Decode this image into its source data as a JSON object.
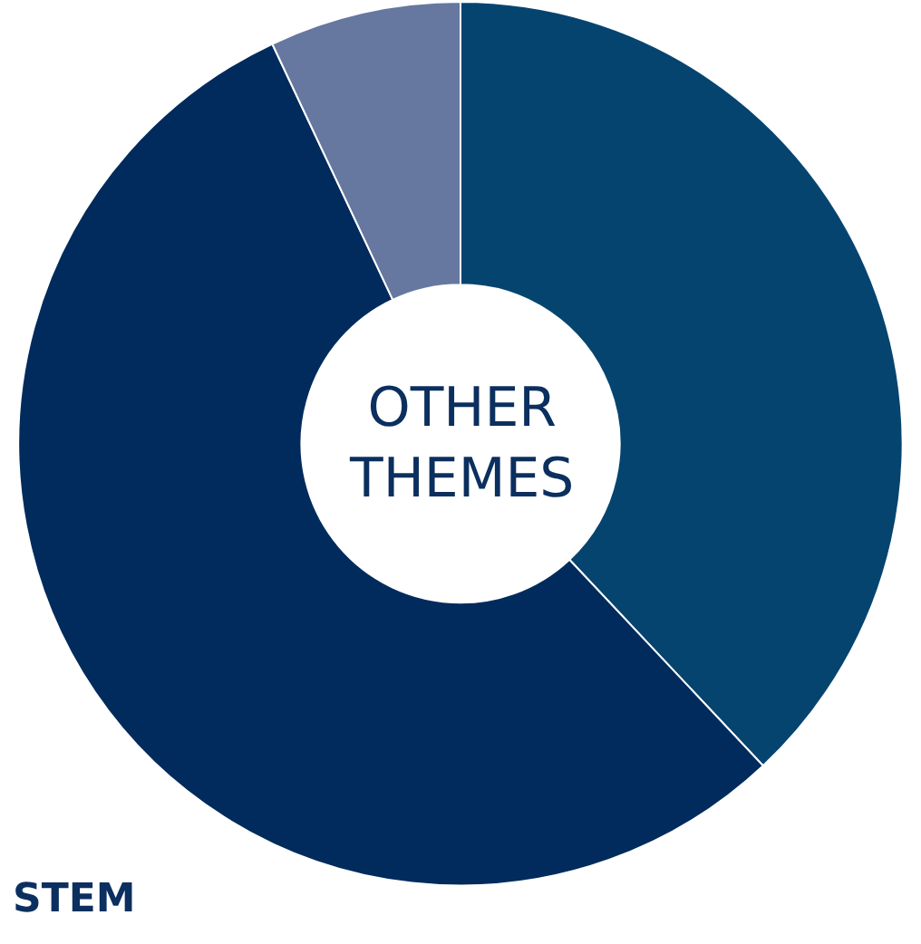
{
  "chart_data": {
    "type": "donut",
    "categories": [
      null,
      null,
      null
    ],
    "values": [
      38,
      55,
      7
    ],
    "colors": [
      "#064470",
      "#002b5c",
      "#6677a0"
    ],
    "annotations": [
      "OTHER THEMES",
      "STEM"
    ],
    "legend": false
  }
}
